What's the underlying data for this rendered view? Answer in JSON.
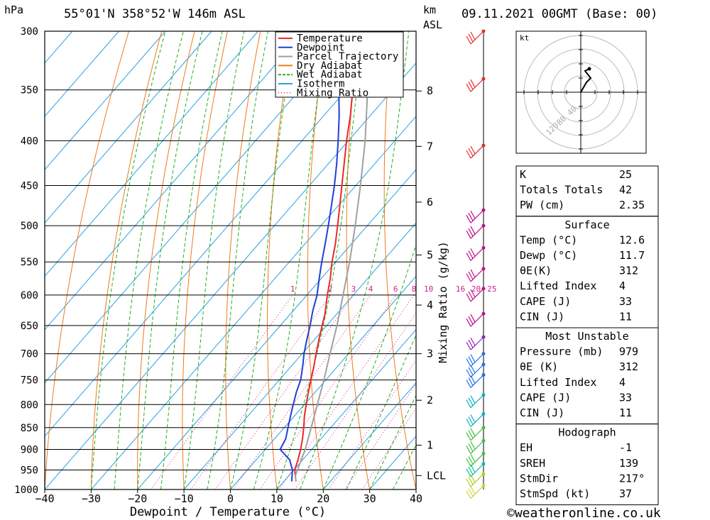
{
  "header": {
    "location": "55°01'N  358°52'W  146m  ASL",
    "date": "09.11.2021  00GMT  (Base: 00)",
    "pressure_unit": "hPa",
    "height_unit_1": "km",
    "height_unit_2": "ASL"
  },
  "chart_data": {
    "type": "line",
    "title": "",
    "xlabel": "Dewpoint / Temperature (°C)",
    "ylabel": "hPa",
    "y_right_label": "Mixing Ratio (g/kg)",
    "xlim": [
      -40,
      40
    ],
    "ylim": [
      1000,
      300
    ],
    "y_scale": "log",
    "x_ticks": [
      -40,
      -30,
      -20,
      -10,
      0,
      10,
      20,
      30,
      40
    ],
    "pressure_levels": [
      300,
      350,
      400,
      450,
      500,
      550,
      600,
      650,
      700,
      750,
      800,
      850,
      900,
      950,
      1000
    ],
    "height_ticks": [
      {
        "label": "8",
        "p": 351
      },
      {
        "label": "7",
        "p": 406
      },
      {
        "label": "6",
        "p": 470
      },
      {
        "label": "5",
        "p": 540
      },
      {
        "label": "4",
        "p": 616
      },
      {
        "label": "3",
        "p": 700
      },
      {
        "label": "2",
        "p": 791
      },
      {
        "label": "1",
        "p": 890
      },
      {
        "label": "LCL",
        "p": 964
      }
    ],
    "mixing_ratio_labels": [
      "1",
      "2",
      "3",
      "4",
      "6",
      "8",
      "10",
      "16",
      "20",
      "25"
    ],
    "mixing_ratio_values": [
      1,
      2,
      3,
      4,
      6,
      8,
      10,
      16,
      20,
      25
    ],
    "legend": [
      {
        "name": "Temperature",
        "color": "#e8292d",
        "style": "solid"
      },
      {
        "name": "Dewpoint",
        "color": "#1f3fd8",
        "style": "solid"
      },
      {
        "name": "Parcel Trajectory",
        "color": "#a0a0a0",
        "style": "solid"
      },
      {
        "name": "Dry Adiabat",
        "color": "#f07a1a",
        "style": "solid"
      },
      {
        "name": "Wet Adiabat",
        "color": "#22b022",
        "style": "dashed"
      },
      {
        "name": "Isotherm",
        "color": "#2aa2e0",
        "style": "solid"
      },
      {
        "name": "Mixing Ratio",
        "color": "#d0208a",
        "style": "dotted"
      }
    ],
    "legend_position": "top-right",
    "series": [
      {
        "name": "Temperature",
        "color": "#e8292d",
        "points": [
          [
            979,
            12.6
          ],
          [
            950,
            10.2
          ],
          [
            925,
            9.0
          ],
          [
            900,
            7.6
          ],
          [
            875,
            6.0
          ],
          [
            850,
            4.2
          ],
          [
            825,
            2.2
          ],
          [
            800,
            0.4
          ],
          [
            775,
            -1.4
          ],
          [
            750,
            -3.2
          ],
          [
            725,
            -5.0
          ],
          [
            700,
            -7.0
          ],
          [
            675,
            -9.0
          ],
          [
            650,
            -11.0
          ],
          [
            630,
            -12.6
          ],
          [
            600,
            -15.6
          ],
          [
            575,
            -18.0
          ],
          [
            550,
            -20.8
          ],
          [
            525,
            -23.4
          ],
          [
            500,
            -26.4
          ],
          [
            475,
            -29.6
          ],
          [
            450,
            -33.0
          ],
          [
            425,
            -36.6
          ],
          [
            400,
            -40.4
          ],
          [
            375,
            -44.2
          ],
          [
            350,
            -48.6
          ],
          [
            325,
            -53.2
          ],
          [
            300,
            -57.0
          ]
        ]
      },
      {
        "name": "Dewpoint",
        "color": "#1f3fd8",
        "points": [
          [
            979,
            11.7
          ],
          [
            950,
            9.7
          ],
          [
            925,
            7.2
          ],
          [
            900,
            3.2
          ],
          [
            875,
            2.4
          ],
          [
            850,
            0.8
          ],
          [
            825,
            -0.8
          ],
          [
            800,
            -2.4
          ],
          [
            775,
            -4.0
          ],
          [
            750,
            -5.4
          ],
          [
            725,
            -7.4
          ],
          [
            700,
            -9.6
          ],
          [
            675,
            -11.6
          ],
          [
            650,
            -13.6
          ],
          [
            625,
            -15.8
          ],
          [
            600,
            -17.8
          ],
          [
            575,
            -20.4
          ],
          [
            550,
            -23.0
          ],
          [
            525,
            -25.6
          ],
          [
            500,
            -28.4
          ],
          [
            475,
            -31.4
          ],
          [
            450,
            -34.6
          ],
          [
            425,
            -38.2
          ],
          [
            400,
            -42.2
          ],
          [
            375,
            -46.6
          ],
          [
            350,
            -51.6
          ],
          [
            345,
            -51.4
          ],
          [
            335,
            -52.8
          ],
          [
            325,
            -57.4
          ],
          [
            315,
            -59.2
          ],
          [
            305,
            -59.4
          ],
          [
            300,
            -60.6
          ]
        ]
      },
      {
        "name": "Parcel Trajectory",
        "color": "#a0a0a0",
        "points": [
          [
            979,
            12.6
          ],
          [
            964,
            11.4
          ],
          [
            950,
            10.8
          ],
          [
            900,
            8.6
          ],
          [
            850,
            5.8
          ],
          [
            800,
            2.8
          ],
          [
            750,
            -0.4
          ],
          [
            700,
            -4.0
          ],
          [
            650,
            -7.8
          ],
          [
            600,
            -12.2
          ],
          [
            550,
            -17.0
          ],
          [
            500,
            -22.6
          ],
          [
            450,
            -29.0
          ],
          [
            400,
            -36.4
          ],
          [
            350,
            -45.4
          ],
          [
            300,
            -56.0
          ]
        ]
      }
    ]
  },
  "hodograph": {
    "unit_label": "kt",
    "ring_labels": [
      "40",
      "80",
      "120"
    ]
  },
  "wind_profile": {
    "levels_hpa": [
      300,
      340,
      405,
      480,
      500,
      530,
      560,
      590,
      630,
      670,
      700,
      720,
      740,
      780,
      820,
      850,
      880,
      910,
      935,
      960,
      990
    ],
    "colors": [
      "#e8292d",
      "#e8292d",
      "#e8292d",
      "#c0108a",
      "#c0108a",
      "#c0108a",
      "#c0108a",
      "#c0108a",
      "#c0108a",
      "#9020c0",
      "#2070e8",
      "#2070e8",
      "#2070e8",
      "#10b0c0",
      "#10b0c0",
      "#40c040",
      "#40c040",
      "#40c040",
      "#10c0a0",
      "#b0d020",
      "#d0d040"
    ]
  },
  "indices": {
    "block1": [
      {
        "label": "K",
        "value": "25"
      },
      {
        "label": "Totals Totals",
        "value": "42"
      },
      {
        "label": "PW (cm)",
        "value": "2.35"
      }
    ],
    "surface": {
      "title": "Surface",
      "rows": [
        {
          "label": "Temp (°C)",
          "value": "12.6"
        },
        {
          "label": "Dewp (°C)",
          "value": "11.7"
        },
        {
          "label": "θE(K)",
          "value": "312"
        },
        {
          "label": "Lifted Index",
          "value": "4"
        },
        {
          "label": "CAPE (J)",
          "value": "33"
        },
        {
          "label": "CIN (J)",
          "value": "11"
        }
      ]
    },
    "most_unstable": {
      "title": "Most Unstable",
      "rows": [
        {
          "label": "Pressure (mb)",
          "value": "979"
        },
        {
          "label": "θE (K)",
          "value": "312"
        },
        {
          "label": "Lifted Index",
          "value": "4"
        },
        {
          "label": "CAPE (J)",
          "value": "33"
        },
        {
          "label": "CIN (J)",
          "value": "11"
        }
      ]
    },
    "hodograph_block": {
      "title": "Hodograph",
      "rows": [
        {
          "label": "EH",
          "value": "-1"
        },
        {
          "label": "SREH",
          "value": "139"
        },
        {
          "label": "StmDir",
          "value": "217°"
        },
        {
          "label": "StmSpd (kt)",
          "value": "37"
        }
      ]
    }
  },
  "footer": {
    "copyright": "©weatheronline.co.uk"
  },
  "colors": {
    "temperature": "#e8292d",
    "dewpoint": "#1f3fd8",
    "parcel": "#a0a0a0",
    "dry_adiabat": "#f07a1a",
    "wet_adiabat": "#22b022",
    "isotherm": "#2aa2e0",
    "mixing_ratio": "#d0208a"
  }
}
